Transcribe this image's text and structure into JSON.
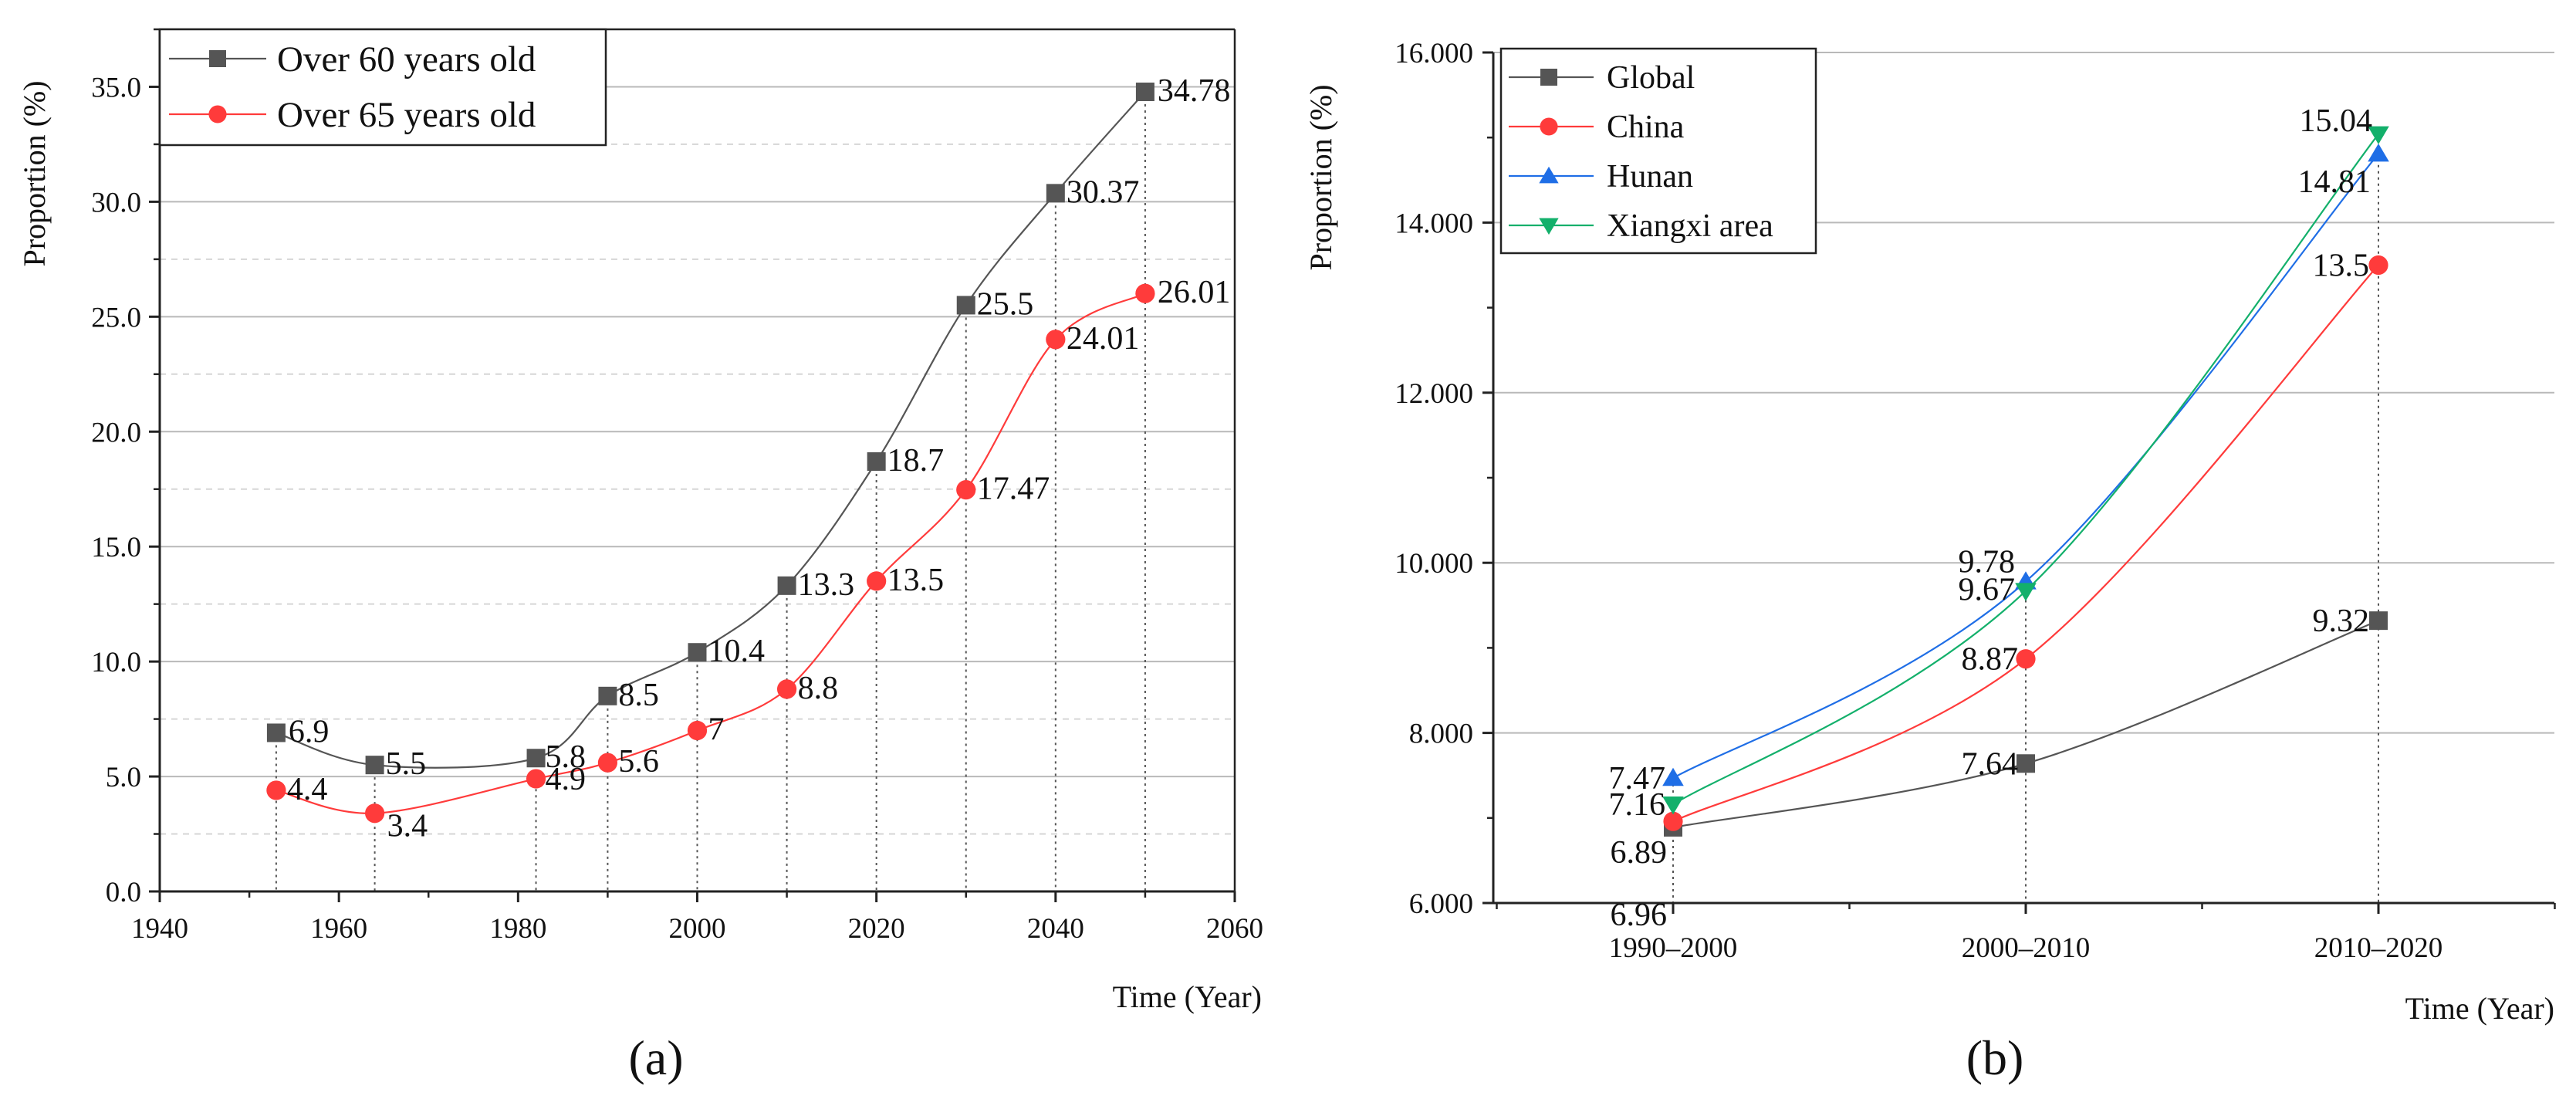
{
  "chart_data": [
    {
      "type": "line",
      "caption": "(a)",
      "xlabel": "Time (Year)",
      "ylabel": "Proportion (%)",
      "xlim": [
        1940,
        2060
      ],
      "ylim": [
        0,
        37.5
      ],
      "xticks": [
        "1940",
        "1960",
        "1980",
        "2000",
        "2020",
        "2040",
        "2060"
      ],
      "yticks": [
        "0.0",
        "5.0",
        "10.0",
        "15.0",
        "20.0",
        "25.0",
        "30.0",
        "35.0"
      ],
      "legend_position": "top-left",
      "series": [
        {
          "name": "Over 60 years old",
          "color": "#555555",
          "marker": "square",
          "x": [
            1953,
            1964,
            1982,
            1990,
            2000,
            2010,
            2020,
            2030,
            2040,
            2050
          ],
          "values": [
            6.9,
            5.5,
            5.8,
            8.5,
            10.4,
            13.3,
            18.7,
            25.5,
            30.37,
            34.78
          ],
          "labels": [
            "6.9",
            "5.5",
            "5.8",
            "8.5",
            "10.4",
            "13.3",
            "18.7",
            "25.5",
            "30.37",
            "34.78"
          ]
        },
        {
          "name": "Over 65 years old",
          "color": "#ff3b3b",
          "marker": "circle",
          "x": [
            1953,
            1964,
            1982,
            1990,
            2000,
            2010,
            2020,
            2030,
            2040,
            2050
          ],
          "values": [
            4.4,
            3.4,
            4.9,
            5.6,
            7,
            8.8,
            13.5,
            17.47,
            24.01,
            26.01
          ],
          "labels": [
            "4.4",
            "3.4",
            "4.9",
            "5.6",
            "7",
            "8.8",
            "13.5",
            "17.47",
            "24.01",
            "26.01"
          ]
        }
      ]
    },
    {
      "type": "line",
      "caption": "(b)",
      "xlabel": "Time (Year)",
      "ylabel": "Proportion (%)",
      "ylim": [
        6,
        16
      ],
      "categories": [
        "1990–2000",
        "2000–2010",
        "2010–2020"
      ],
      "yticks": [
        "6.000",
        "8.000",
        "10.000",
        "12.000",
        "14.000",
        "16.000"
      ],
      "legend_position": "top-left",
      "series": [
        {
          "name": "Global",
          "color": "#555555",
          "marker": "square",
          "values": [
            6.89,
            7.64,
            9.32
          ],
          "labels": [
            "6.89",
            "7.64",
            "9.32"
          ]
        },
        {
          "name": "China",
          "color": "#ff3b3b",
          "marker": "circle",
          "values": [
            6.96,
            8.87,
            13.5
          ],
          "labels": [
            "6.96",
            "8.87",
            "13.5"
          ]
        },
        {
          "name": "Hunan",
          "color": "#1f6ee6",
          "marker": "triangle-up",
          "values": [
            7.47,
            9.78,
            14.81
          ],
          "labels": [
            "7.47",
            "9.78",
            "14.81"
          ]
        },
        {
          "name": "Xiangxi area",
          "color": "#13b06b",
          "marker": "triangle-down",
          "values": [
            7.16,
            9.67,
            15.04
          ],
          "labels": [
            "7.16",
            "9.67",
            "15.04"
          ]
        }
      ]
    }
  ]
}
